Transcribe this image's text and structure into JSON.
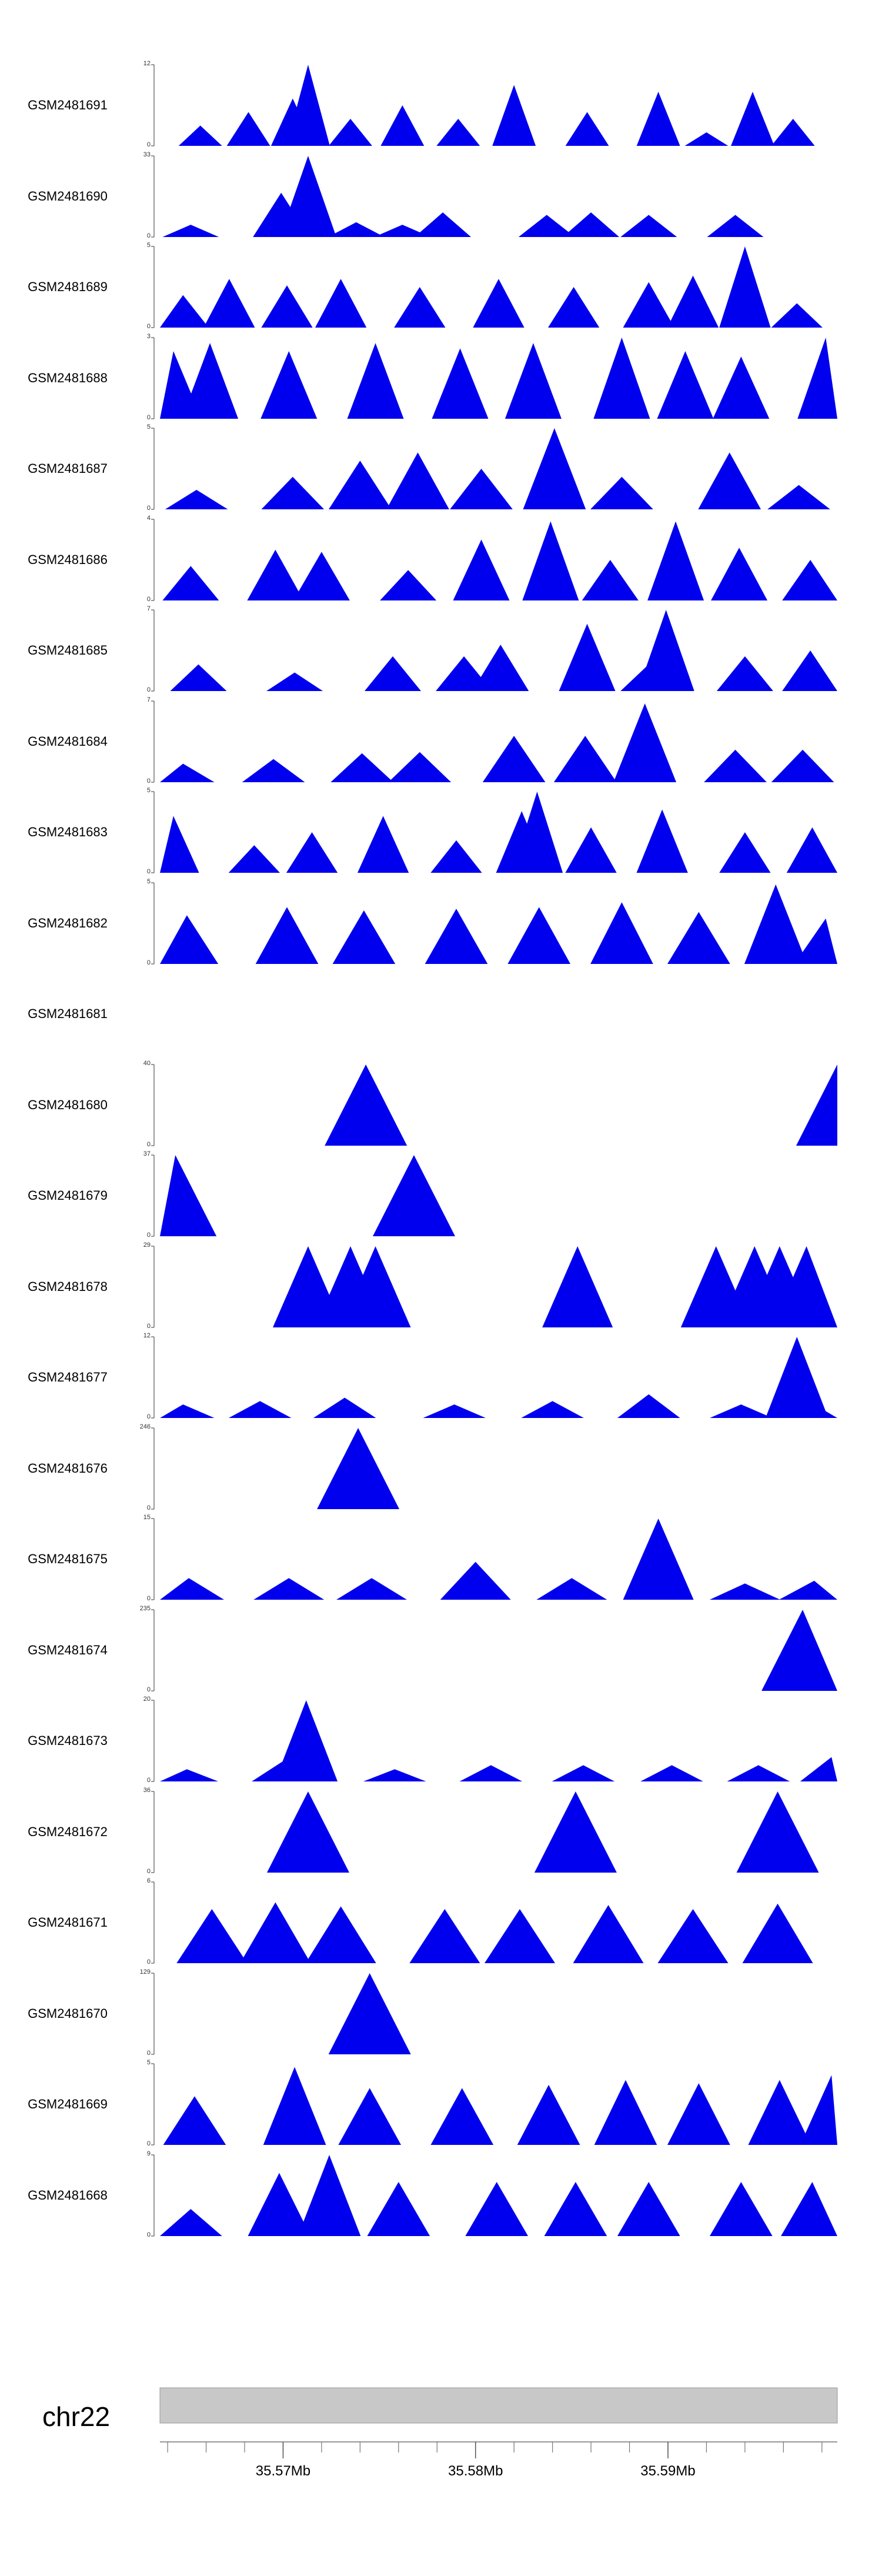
{
  "chart_data": {
    "type": "area",
    "colors": {
      "signal": "#0000ee",
      "axis": "#555555",
      "ideogram": "#c8c8c8"
    },
    "x_range_mb": [
      35.5636,
      35.5988
    ],
    "tracks": [
      {
        "name": "GSM2481691",
        "ymax": "12",
        "ymin": "0",
        "peaks": [
          [
            35.5657,
            3
          ],
          [
            35.5682,
            5
          ],
          [
            35.5705,
            7
          ],
          [
            35.5713,
            12
          ],
          [
            35.5735,
            4
          ],
          [
            35.5762,
            6
          ],
          [
            35.5791,
            4
          ],
          [
            35.582,
            9
          ],
          [
            35.5858,
            5
          ],
          [
            35.5895,
            8
          ],
          [
            35.592,
            2
          ],
          [
            35.5944,
            8
          ],
          [
            35.5965,
            4
          ]
        ]
      },
      {
        "name": "GSM2481690",
        "ymax": "33",
        "ymin": "0",
        "peaks": [
          [
            35.5652,
            5
          ],
          [
            35.5699,
            18
          ],
          [
            35.5713,
            33
          ],
          [
            35.5738,
            6
          ],
          [
            35.5762,
            5
          ],
          [
            35.5783,
            10
          ],
          [
            35.5837,
            9
          ],
          [
            35.586,
            10
          ],
          [
            35.589,
            9
          ],
          [
            35.5935,
            9
          ]
        ]
      },
      {
        "name": "GSM2481689",
        "ymax": "5",
        "ymin": "0",
        "peaks": [
          [
            35.5648,
            2
          ],
          [
            35.5672,
            3
          ],
          [
            35.5702,
            2.6
          ],
          [
            35.573,
            3
          ],
          [
            35.5771,
            2.5
          ],
          [
            35.5812,
            3
          ],
          [
            35.5851,
            2.5
          ],
          [
            35.589,
            2.8
          ],
          [
            35.5913,
            3.2
          ],
          [
            35.594,
            5
          ],
          [
            35.5967,
            1.5
          ]
        ]
      },
      {
        "name": "GSM2481688",
        "ymax": "3",
        "ymin": "0",
        "peaks": [
          [
            35.5643,
            2.5
          ],
          [
            35.5662,
            2.8
          ],
          [
            35.5703,
            2.5
          ],
          [
            35.5748,
            2.8
          ],
          [
            35.5792,
            2.6
          ],
          [
            35.583,
            2.8
          ],
          [
            35.5876,
            3
          ],
          [
            35.5909,
            2.5
          ],
          [
            35.5938,
            2.3
          ],
          [
            35.5982,
            3
          ]
        ]
      },
      {
        "name": "GSM2481687",
        "ymax": "5",
        "ymin": "0",
        "peaks": [
          [
            35.5655,
            1.2
          ],
          [
            35.5705,
            2
          ],
          [
            35.574,
            3
          ],
          [
            35.577,
            3.5
          ],
          [
            35.5803,
            2.5
          ],
          [
            35.5841,
            5
          ],
          [
            35.5876,
            2
          ],
          [
            35.5932,
            3.5
          ],
          [
            35.5968,
            1.5
          ]
        ]
      },
      {
        "name": "GSM2481686",
        "ymax": "4",
        "ymin": "0",
        "peaks": [
          [
            35.5652,
            1.7
          ],
          [
            35.5696,
            2.5
          ],
          [
            35.572,
            2.4
          ],
          [
            35.5765,
            1.5
          ],
          [
            35.5803,
            3
          ],
          [
            35.5839,
            3.9
          ],
          [
            35.587,
            2
          ],
          [
            35.5904,
            3.9
          ],
          [
            35.5937,
            2.6
          ],
          [
            35.5974,
            2
          ]
        ]
      },
      {
        "name": "GSM2481685",
        "ymax": "7",
        "ymin": "0",
        "peaks": [
          [
            35.5656,
            2.3
          ],
          [
            35.5706,
            1.6
          ],
          [
            35.5757,
            3
          ],
          [
            35.5794,
            3
          ],
          [
            35.5813,
            4
          ],
          [
            35.5858,
            5.8
          ],
          [
            35.589,
            2.3
          ],
          [
            35.5899,
            7
          ],
          [
            35.594,
            3
          ],
          [
            35.5974,
            3.5
          ]
        ]
      },
      {
        "name": "GSM2481684",
        "ymax": "7",
        "ymin": "0",
        "peaks": [
          [
            35.5648,
            1.6
          ],
          [
            35.5695,
            2
          ],
          [
            35.5741,
            2.5
          ],
          [
            35.5771,
            2.6
          ],
          [
            35.582,
            4
          ],
          [
            35.5857,
            4
          ],
          [
            35.5888,
            6.8
          ],
          [
            35.5935,
            2.8
          ],
          [
            35.597,
            2.8
          ]
        ]
      },
      {
        "name": "GSM2481683",
        "ymax": "5",
        "ymin": "0",
        "peaks": [
          [
            35.5643,
            3.5
          ],
          [
            35.5685,
            1.7
          ],
          [
            35.5715,
            2.5
          ],
          [
            35.5752,
            3.5
          ],
          [
            35.579,
            2
          ],
          [
            35.5824,
            3.8
          ],
          [
            35.5832,
            5
          ],
          [
            35.586,
            2.8
          ],
          [
            35.5897,
            3.9
          ],
          [
            35.594,
            2.5
          ],
          [
            35.5975,
            2.8
          ]
        ]
      },
      {
        "name": "GSM2481682",
        "ymax": "5",
        "ymin": "0",
        "peaks": [
          [
            35.565,
            3
          ],
          [
            35.5702,
            3.5
          ],
          [
            35.5742,
            3.3
          ],
          [
            35.579,
            3.4
          ],
          [
            35.5833,
            3.5
          ],
          [
            35.5876,
            3.8
          ],
          [
            35.5916,
            3.2
          ],
          [
            35.5956,
            4.9
          ],
          [
            35.5982,
            2.8
          ]
        ]
      },
      {
        "name": "GSM2481681",
        "ymax": "",
        "ymin": "",
        "peaks": []
      },
      {
        "name": "GSM2481680",
        "ymax": "40",
        "ymin": "0",
        "peaks": [
          [
            35.5743,
            40
          ],
          [
            35.5988,
            40
          ]
        ]
      },
      {
        "name": "GSM2481679",
        "ymax": "37",
        "ymin": "0",
        "peaks": [
          [
            35.5644,
            37
          ],
          [
            35.5768,
            37
          ]
        ]
      },
      {
        "name": "GSM2481678",
        "ymax": "29",
        "ymin": "0",
        "peaks": [
          [
            35.5713,
            29
          ],
          [
            35.5735,
            29
          ],
          [
            35.5748,
            29
          ],
          [
            35.5853,
            29
          ],
          [
            35.5925,
            29
          ],
          [
            35.5945,
            29
          ],
          [
            35.5958,
            29
          ],
          [
            35.5972,
            29
          ]
        ]
      },
      {
        "name": "GSM2481677",
        "ymax": "12",
        "ymin": "0",
        "peaks": [
          [
            35.5648,
            2
          ],
          [
            35.5688,
            2.5
          ],
          [
            35.5732,
            3
          ],
          [
            35.5789,
            2
          ],
          [
            35.584,
            2.5
          ],
          [
            35.589,
            3.5
          ],
          [
            35.5938,
            2
          ],
          [
            35.5967,
            12
          ],
          [
            35.5982,
            1
          ]
        ]
      },
      {
        "name": "GSM2481676",
        "ymax": "246",
        "ymin": "0",
        "peaks": [
          [
            35.5739,
            246
          ]
        ]
      },
      {
        "name": "GSM2481675",
        "ymax": "15",
        "ymin": "0",
        "peaks": [
          [
            35.5651,
            4
          ],
          [
            35.5703,
            4
          ],
          [
            35.5746,
            4
          ],
          [
            35.58,
            7
          ],
          [
            35.585,
            4
          ],
          [
            35.5895,
            15
          ],
          [
            35.594,
            3
          ],
          [
            35.5976,
            3.5
          ]
        ]
      },
      {
        "name": "GSM2481674",
        "ymax": "235",
        "ymin": "0",
        "peaks": [
          [
            35.597,
            235
          ]
        ]
      },
      {
        "name": "GSM2481673",
        "ymax": "20",
        "ymin": "0",
        "peaks": [
          [
            35.565,
            3
          ],
          [
            35.57,
            5
          ],
          [
            35.5712,
            20
          ],
          [
            35.5758,
            3
          ],
          [
            35.5808,
            4
          ],
          [
            35.5856,
            4
          ],
          [
            35.5902,
            4
          ],
          [
            35.5947,
            4
          ],
          [
            35.5985,
            6
          ]
        ]
      },
      {
        "name": "GSM2481672",
        "ymax": "36",
        "ymin": "0",
        "peaks": [
          [
            35.5713,
            36
          ],
          [
            35.5852,
            36
          ],
          [
            35.5957,
            36
          ]
        ]
      },
      {
        "name": "GSM2481671",
        "ymax": "6",
        "ymin": "0",
        "peaks": [
          [
            35.5663,
            4
          ],
          [
            35.5696,
            4.5
          ],
          [
            35.573,
            4.2
          ],
          [
            35.5784,
            4
          ],
          [
            35.5823,
            4
          ],
          [
            35.5869,
            4.3
          ],
          [
            35.5913,
            4
          ],
          [
            35.5957,
            4.4
          ]
        ]
      },
      {
        "name": "GSM2481670",
        "ymax": "129",
        "ymin": "0",
        "peaks": [
          [
            35.5745,
            129
          ]
        ]
      },
      {
        "name": "GSM2481669",
        "ymax": "5",
        "ymin": "0",
        "peaks": [
          [
            35.5654,
            3
          ],
          [
            35.5706,
            4.8
          ],
          [
            35.5745,
            3.5
          ],
          [
            35.5793,
            3.5
          ],
          [
            35.5838,
            3.7
          ],
          [
            35.5878,
            4
          ],
          [
            35.5916,
            3.8
          ],
          [
            35.5958,
            4
          ],
          [
            35.5985,
            4.3
          ]
        ]
      },
      {
        "name": "GSM2481668",
        "ymax": "9",
        "ymin": "0",
        "peaks": [
          [
            35.5652,
            3
          ],
          [
            35.5698,
            7
          ],
          [
            35.5724,
            9
          ],
          [
            35.576,
            6
          ],
          [
            35.5811,
            6
          ],
          [
            35.5852,
            6
          ],
          [
            35.589,
            6
          ],
          [
            35.5938,
            6
          ],
          [
            35.5975,
            6
          ]
        ]
      }
    ],
    "ideogram": {
      "chromosome": "chr22"
    },
    "axis": {
      "ticks": [
        {
          "value": 35.57,
          "label": "35.57Mb"
        },
        {
          "value": 35.58,
          "label": "35.58Mb"
        },
        {
          "value": 35.59,
          "label": "35.59Mb"
        }
      ]
    }
  }
}
